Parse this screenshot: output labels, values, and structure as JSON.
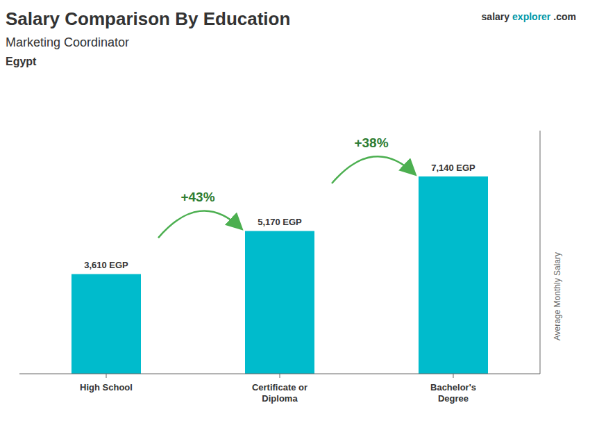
{
  "chart_data": {
    "type": "bar",
    "title": "Salary Comparison By Education",
    "subtitle": [
      "Marketing Coordinator",
      "Egypt"
    ],
    "watermark": [
      "salary",
      "explorer",
      ".com"
    ],
    "y_label": "Average Monthly Salary",
    "categories": [
      "High School",
      "Certificate or\nDiploma",
      "Bachelor's\nDegree"
    ],
    "values": [
      3610,
      5170,
      7140
    ],
    "value_labels": [
      "3,610 EGP",
      "5,170 EGP",
      "7,140 EGP"
    ],
    "data_labels": true,
    "annotations": [
      "+43%",
      "+38%"
    ],
    "ylim": [
      0,
      8800
    ],
    "tick_labels": "x",
    "grid": false,
    "color": "#00bbcc"
  }
}
